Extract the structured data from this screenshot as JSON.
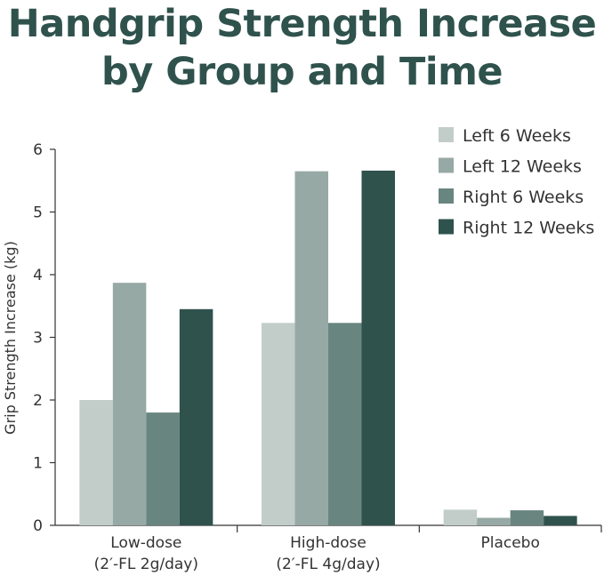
{
  "chart_data": {
    "type": "bar",
    "title_lines": [
      "Handgrip Strength Increase",
      "by Group and Time"
    ],
    "ylabel": "Grip Strength Increase (kg)",
    "xlabel": "",
    "ylim": [
      0,
      6
    ],
    "yticks": [
      "0",
      "1",
      "2",
      "3",
      "4",
      "5",
      "6"
    ],
    "categories": [
      {
        "line1": "Low-dose",
        "line2": "(2′-FL 2g/day)"
      },
      {
        "line1": "High-dose",
        "line2": "(2′-FL 4g/day)"
      },
      {
        "line1": "Placebo",
        "line2": ""
      }
    ],
    "series": [
      {
        "name": "Left 6 Weeks",
        "color": "#c2cdca",
        "values": [
          2.0,
          3.23,
          0.25
        ]
      },
      {
        "name": "Left 12 Weeks",
        "color": "#97a9a5",
        "values": [
          3.87,
          5.65,
          0.12
        ]
      },
      {
        "name": "Right 6 Weeks",
        "color": "#698580",
        "values": [
          1.8,
          3.23,
          0.24
        ]
      },
      {
        "name": "Right 12 Weeks",
        "color": "#2f524d",
        "values": [
          3.45,
          5.66,
          0.15
        ]
      }
    ],
    "grid": false,
    "legend_position": "top-right"
  }
}
